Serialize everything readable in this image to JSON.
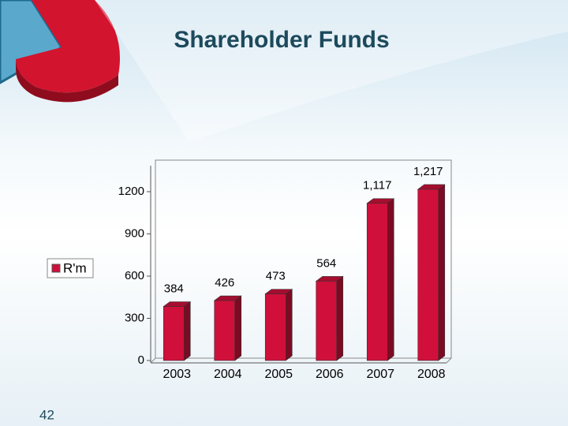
{
  "slide_number": "42",
  "chart_data": {
    "type": "bar",
    "title": "Shareholder Funds",
    "categories": [
      "2003",
      "2004",
      "2005",
      "2006",
      "2007",
      "2008"
    ],
    "series": [
      {
        "name": "R'm",
        "color": "#d0103a",
        "values": [
          384,
          426,
          473,
          564,
          1117,
          1217
        ],
        "value_labels": [
          "384",
          "426",
          "473",
          "564",
          "1,117",
          "1,217"
        ]
      }
    ],
    "ylim": [
      0,
      1400
    ],
    "yticks": [
      0,
      300,
      600,
      900,
      1200
    ],
    "legend": "left"
  }
}
